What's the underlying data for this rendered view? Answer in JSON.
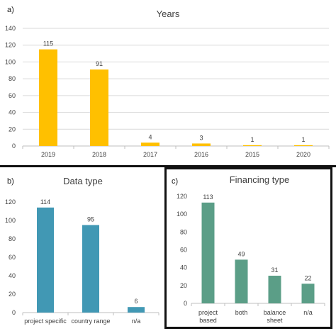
{
  "chart_data": [
    {
      "panel": "a)",
      "type": "bar",
      "title": "Years",
      "categories": [
        "2019",
        "2018",
        "2017",
        "2016",
        "2015",
        "2020"
      ],
      "values": [
        115,
        91,
        4,
        3,
        1,
        1
      ],
      "data_labels": [
        "115",
        "91",
        "4",
        "3",
        "1",
        "1"
      ],
      "ylim": [
        0,
        140
      ],
      "yticks": [
        "0",
        "20",
        "40",
        "60",
        "80",
        "100",
        "120",
        "140"
      ],
      "grid": true,
      "color": "#FFC000"
    },
    {
      "panel": "b)",
      "type": "bar",
      "title": "Data type",
      "categories": [
        "project specific",
        "country range",
        "n/a"
      ],
      "values": [
        114,
        95,
        6
      ],
      "data_labels": [
        "114",
        "95",
        "6"
      ],
      "ylim": [
        0,
        120
      ],
      "yticks": [
        "0",
        "20",
        "40",
        "60",
        "80",
        "100",
        "120"
      ],
      "grid": false,
      "color": "#4198B4"
    },
    {
      "panel": "c)",
      "type": "bar",
      "title": "Financing type",
      "categories": [
        [
          "project",
          "based"
        ],
        [
          "both"
        ],
        [
          "balance",
          "sheet"
        ],
        [
          "n/a"
        ]
      ],
      "values": [
        113,
        49,
        31,
        22
      ],
      "data_labels": [
        "113",
        "49",
        "31",
        "22"
      ],
      "ylim": [
        0,
        120
      ],
      "yticks": [
        "0",
        "20",
        "40",
        "60",
        "80",
        "100",
        "120"
      ],
      "grid": false,
      "color": "#5B9E87"
    }
  ]
}
